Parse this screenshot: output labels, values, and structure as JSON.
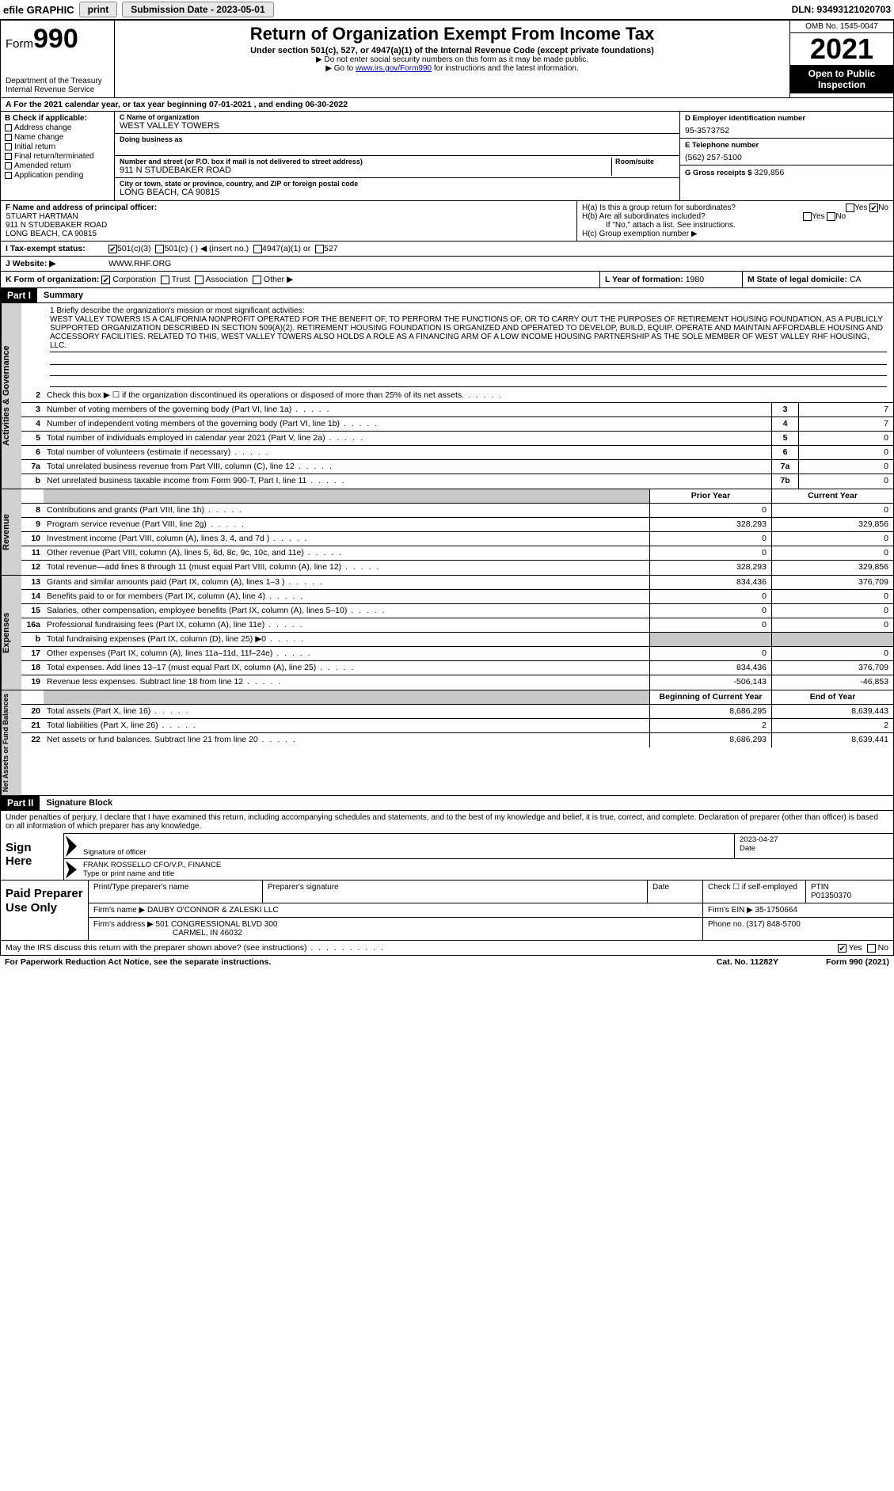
{
  "topbar": {
    "efile": "efile GRAPHIC",
    "print": "print",
    "subdate": "Submission Date - 2023-05-01",
    "dln": "DLN: 93493121020703"
  },
  "header": {
    "form_prefix": "Form",
    "form_num": "990",
    "dept1": "Department of the Treasury",
    "dept2": "Internal Revenue Service",
    "title": "Return of Organization Exempt From Income Tax",
    "sub1": "Under section 501(c), 527, or 4947(a)(1) of the Internal Revenue Code (except private foundations)",
    "sub2a": "▶ Do not enter social security numbers on this form as it may be made public.",
    "sub2b_pre": "▶ Go to ",
    "sub2b_link": "www.irs.gov/Form990",
    "sub2b_post": " for instructions and the latest information.",
    "omb": "OMB No. 1545-0047",
    "year": "2021",
    "open": "Open to Public Inspection"
  },
  "rowA": "A  For the 2021 calendar year, or tax year beginning 07-01-2021   , and ending 06-30-2022",
  "colB": {
    "hdr": "B Check if applicable:",
    "items": [
      "Address change",
      "Name change",
      "Initial return",
      "Final return/terminated",
      "Amended return",
      "Application pending"
    ]
  },
  "colC": {
    "name_lbl": "C Name of organization",
    "name": "WEST VALLEY TOWERS",
    "dba_lbl": "Doing business as",
    "dba": "",
    "addr_lbl": "Number and street (or P.O. box if mail is not delivered to street address)",
    "addr": "911 N STUDEBAKER ROAD",
    "room_lbl": "Room/suite",
    "city_lbl": "City or town, state or province, country, and ZIP or foreign postal code",
    "city": "LONG BEACH, CA  90815"
  },
  "colD": {
    "ein_lbl": "D Employer identification number",
    "ein": "95-3573752",
    "tel_lbl": "E Telephone number",
    "tel": "(562) 257-5100",
    "gross_lbl": "G Gross receipts $",
    "gross": "329,856"
  },
  "sectF": {
    "lbl": "F  Name and address of principal officer:",
    "name": "STUART HARTMAN",
    "addr1": "911 N STUDEBAKER ROAD",
    "addr2": "LONG BEACH, CA  90815"
  },
  "sectH": {
    "ha": "H(a)  Is this a group return for subordinates?",
    "hb": "H(b)  Are all subordinates included?",
    "hb_note": "If \"No,\" attach a list. See instructions.",
    "hc": "H(c)  Group exemption number ▶"
  },
  "lineI": {
    "lbl": "I    Tax-exempt status:",
    "opts": [
      "501(c)(3)",
      "501(c) (  ) ◀ (insert no.)",
      "4947(a)(1) or",
      "527"
    ]
  },
  "lineJ": {
    "lbl": "J   Website: ▶",
    "val": "WWW.RHF.ORG"
  },
  "lineK": "K Form of organization:",
  "lineK_opts": [
    "Corporation",
    "Trust",
    "Association",
    "Other ▶"
  ],
  "lineL": {
    "lbl": "L Year of formation:",
    "val": "1980"
  },
  "lineM": {
    "lbl": "M State of legal domicile:",
    "val": "CA"
  },
  "partI": {
    "hdr": "Part I",
    "title": "Summary"
  },
  "mission_lbl": "1   Briefly describe the organization's mission or most significant activities:",
  "mission": "WEST VALLEY TOWERS IS A CALIFORNIA NONPROFIT OPERATED FOR THE BENEFIT OF, TO PERFORM THE FUNCTIONS OF, OR TO CARRY OUT THE PURPOSES OF RETIREMENT HOUSING FOUNDATION, AS A PUBLICLY SUPPORTED ORGANIZATION DESCRIBED IN SECTION 509(A)(2). RETIREMENT HOUSING FOUNDATION IS ORGANIZED AND OPERATED TO DEVELOP, BUILD, EQUIP, OPERATE AND MAINTAIN AFFORDABLE HOUSING AND ACCESSORY FACILITIES. RELATED TO THIS, WEST VALLEY TOWERS ALSO HOLDS A ROLE AS A FINANCING ARM OF A LOW INCOME HOUSING PARTNERSHIP AS THE SOLE MEMBER OF WEST VALLEY RHF HOUSING, LLC.",
  "gov_sidebar": "Activities & Governance",
  "rev_sidebar": "Revenue",
  "exp_sidebar": "Expenses",
  "net_sidebar": "Net Assets or Fund Balances",
  "gov_rows": [
    {
      "n": "2",
      "t": "Check this box ▶ ☐ if the organization discontinued its operations or disposed of more than 25% of its net assets.",
      "box": "",
      "v": ""
    },
    {
      "n": "3",
      "t": "Number of voting members of the governing body (Part VI, line 1a)",
      "box": "3",
      "v": "7"
    },
    {
      "n": "4",
      "t": "Number of independent voting members of the governing body (Part VI, line 1b)",
      "box": "4",
      "v": "7"
    },
    {
      "n": "5",
      "t": "Total number of individuals employed in calendar year 2021 (Part V, line 2a)",
      "box": "5",
      "v": "0"
    },
    {
      "n": "6",
      "t": "Total number of volunteers (estimate if necessary)",
      "box": "6",
      "v": "0"
    },
    {
      "n": "7a",
      "t": "Total unrelated business revenue from Part VIII, column (C), line 12",
      "box": "7a",
      "v": "0"
    },
    {
      "n": "b",
      "t": "Net unrelated business taxable income from Form 990-T, Part I, line 11",
      "box": "7b",
      "v": "0"
    }
  ],
  "col_hdrs": {
    "prior": "Prior Year",
    "current": "Current Year",
    "boy": "Beginning of Current Year",
    "eoy": "End of Year"
  },
  "rev_rows": [
    {
      "n": "8",
      "t": "Contributions and grants (Part VIII, line 1h)",
      "p": "0",
      "c": "0"
    },
    {
      "n": "9",
      "t": "Program service revenue (Part VIII, line 2g)",
      "p": "328,293",
      "c": "329,856"
    },
    {
      "n": "10",
      "t": "Investment income (Part VIII, column (A), lines 3, 4, and 7d )",
      "p": "0",
      "c": "0"
    },
    {
      "n": "11",
      "t": "Other revenue (Part VIII, column (A), lines 5, 6d, 8c, 9c, 10c, and 11e)",
      "p": "0",
      "c": "0"
    },
    {
      "n": "12",
      "t": "Total revenue—add lines 8 through 11 (must equal Part VIII, column (A), line 12)",
      "p": "328,293",
      "c": "329,856"
    }
  ],
  "exp_rows": [
    {
      "n": "13",
      "t": "Grants and similar amounts paid (Part IX, column (A), lines 1–3 )",
      "p": "834,436",
      "c": "376,709"
    },
    {
      "n": "14",
      "t": "Benefits paid to or for members (Part IX, column (A), line 4)",
      "p": "0",
      "c": "0"
    },
    {
      "n": "15",
      "t": "Salaries, other compensation, employee benefits (Part IX, column (A), lines 5–10)",
      "p": "0",
      "c": "0"
    },
    {
      "n": "16a",
      "t": "Professional fundraising fees (Part IX, column (A), line 11e)",
      "p": "0",
      "c": "0"
    },
    {
      "n": "b",
      "t": "Total fundraising expenses (Part IX, column (D), line 25) ▶0",
      "p": "",
      "c": "",
      "shaded": true
    },
    {
      "n": "17",
      "t": "Other expenses (Part IX, column (A), lines 11a–11d, 11f–24e)",
      "p": "0",
      "c": "0"
    },
    {
      "n": "18",
      "t": "Total expenses. Add lines 13–17 (must equal Part IX, column (A), line 25)",
      "p": "834,436",
      "c": "376,709"
    },
    {
      "n": "19",
      "t": "Revenue less expenses. Subtract line 18 from line 12",
      "p": "-506,143",
      "c": "-46,853"
    }
  ],
  "net_rows": [
    {
      "n": "20",
      "t": "Total assets (Part X, line 16)",
      "p": "8,686,295",
      "c": "8,639,443"
    },
    {
      "n": "21",
      "t": "Total liabilities (Part X, line 26)",
      "p": "2",
      "c": "2"
    },
    {
      "n": "22",
      "t": "Net assets or fund balances. Subtract line 21 from line 20",
      "p": "8,686,293",
      "c": "8,639,441"
    }
  ],
  "partII": {
    "hdr": "Part II",
    "title": "Signature Block"
  },
  "sig": {
    "intro": "Under penalties of perjury, I declare that I have examined this return, including accompanying schedules and statements, and to the best of my knowledge and belief, it is true, correct, and complete. Declaration of preparer (other than officer) is based on all information of which preparer has any knowledge.",
    "sign_here": "Sign Here",
    "sig_lbl": "Signature of officer",
    "date_lbl": "Date",
    "date": "2023-04-27",
    "name": "FRANK ROSSELLO  CFO/V.P., FINANCE",
    "name_lbl": "Type or print name and title"
  },
  "prep": {
    "title": "Paid Preparer Use Only",
    "h1": "Print/Type preparer's name",
    "h2": "Preparer's signature",
    "h3": "Date",
    "h4_pre": "Check ☐ if self-employed",
    "h5": "PTIN",
    "ptin": "P01350370",
    "firm_lbl": "Firm's name    ▶",
    "firm": "DAUBY O'CONNOR & ZALESKI LLC",
    "ein_lbl": "Firm's EIN ▶",
    "ein": "35-1750664",
    "addr_lbl": "Firm's address ▶",
    "addr1": "501 CONGRESSIONAL BLVD 300",
    "addr2": "CARMEL, IN  46032",
    "phone_lbl": "Phone no.",
    "phone": "(317) 848-5700"
  },
  "footer": {
    "discuss": "May the IRS discuss this return with the preparer shown above? (see instructions)",
    "pra": "For Paperwork Reduction Act Notice, see the separate instructions.",
    "cat": "Cat. No. 11282Y",
    "form": "Form 990 (2021)"
  }
}
